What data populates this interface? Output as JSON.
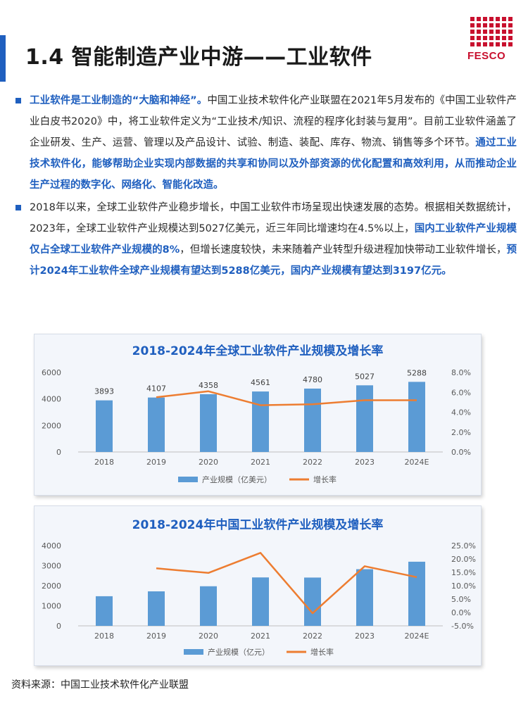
{
  "header": {
    "title": "1.4 智能制造产业中游——工业软件",
    "logo_text": "FESCO",
    "brand_color": "#c8102e",
    "accent_color": "#1f5fbf"
  },
  "bullets": [
    {
      "segments": [
        {
          "text": "工业软件是工业制造的“大脑和神经”。",
          "style": "hl-title"
        },
        {
          "text": "中国工业技术软件化产业联盟在2021年5月发布的《中国工业软件产业白皮书2020》中，将工业软件定义为“工业技术/知识、流程的程序化封装与复用”。目前工业软件涵盖了企业研发、生产、运营、管理以及产品设计、试验、制造、装配、库存、物流、销售等多个环节。",
          "style": "plain"
        },
        {
          "text": "通过工业技术软件化，能够帮助企业实现内部数据的共享和协同以及外部资源的优化配置和高效利用，从而推动企业生产过程的数字化、网络化、智能化改造。",
          "style": "hl"
        }
      ]
    },
    {
      "segments": [
        {
          "text": "2018年以来，全球工业软件产业稳步增长，中国工业软件市场呈现出快速发展的态势。根据相关数据统计，2023年，全球工业软件产业规模达到5027亿美元，近三年同比增速均在4.5%以上，",
          "style": "plain"
        },
        {
          "text": "国内工业软件产业规模仅占全球工业软件产业规模的8%",
          "style": "hl"
        },
        {
          "text": "，但增长速度较快，未来随着产业转型升级进程加快带动工业软件增长，",
          "style": "plain"
        },
        {
          "text": "预计2024年工业软件全球产业规模有望达到5288亿美元，国内产业规模有望达到3197亿元。",
          "style": "hl"
        }
      ]
    }
  ],
  "chart_data": [
    {
      "type": "bar",
      "title": "2018-2024年全球工业软件产业规模及增长率",
      "categories": [
        "2018",
        "2019",
        "2020",
        "2021",
        "2022",
        "2023",
        "2024E"
      ],
      "series": [
        {
          "name": "产业规模（亿美元）",
          "type": "bar",
          "axis": "left",
          "color": "#5b9bd5",
          "values": [
            3893,
            4107,
            4358,
            4561,
            4780,
            5027,
            5288
          ],
          "labels_shown": true
        },
        {
          "name": "增长率",
          "type": "line",
          "axis": "right",
          "color": "#ed7d31",
          "values": [
            null,
            5.5,
            6.1,
            4.7,
            4.8,
            5.2,
            5.2
          ]
        }
      ],
      "y_left": {
        "min": 0,
        "max": 6000,
        "ticks": [
          "0",
          "2000",
          "4000",
          "6000"
        ]
      },
      "y_right": {
        "min": 0,
        "max": 8,
        "ticks": [
          "0.0%",
          "2.0%",
          "4.0%",
          "6.0%",
          "8.0%"
        ]
      },
      "legend": "bottom",
      "grid": false
    },
    {
      "type": "bar",
      "title": "2018-2024年中国工业软件产业规模及增长率",
      "categories": [
        "2018",
        "2019",
        "2020",
        "2021",
        "2022",
        "2023",
        "2024E"
      ],
      "series": [
        {
          "name": "产业规模（亿元）",
          "type": "bar",
          "axis": "left",
          "color": "#5b9bd5",
          "values": [
            1477,
            1720,
            1974,
            2414,
            2407,
            2824,
            3197
          ],
          "labels_shown": false
        },
        {
          "name": "增长率",
          "type": "line",
          "axis": "right",
          "color": "#ed7d31",
          "values": [
            null,
            16.5,
            14.8,
            22.3,
            -0.3,
            17.3,
            13.2
          ]
        }
      ],
      "y_left": {
        "min": 0,
        "max": 4000,
        "ticks": [
          "0",
          "1000",
          "2000",
          "3000",
          "4000"
        ]
      },
      "y_right": {
        "min": -5,
        "max": 25,
        "ticks": [
          "-5.0%",
          "0.0%",
          "5.0%",
          "10.0%",
          "15.0%",
          "20.0%",
          "25.0%"
        ]
      },
      "legend": "bottom",
      "grid": false
    }
  ],
  "footer": {
    "source": "资料来源：中国工业技术软件化产业联盟"
  }
}
